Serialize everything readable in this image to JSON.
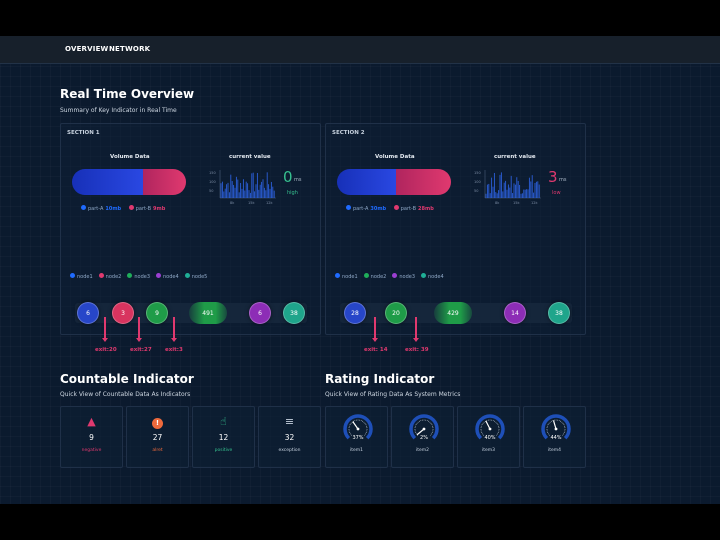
{
  "nav": {
    "items": [
      "OVERVIEW",
      "NETWORK"
    ]
  },
  "overview": {
    "title": "Real Time Overview",
    "subtitle": "Summary of Key Indicator in Real Time",
    "sections": [
      {
        "title": "SECTION 1",
        "volume_label": "Volume Data",
        "current_label": "current value",
        "volume": {
          "part_a": {
            "label": "part-A",
            "value": "10mb",
            "share": 0.62
          },
          "part_b": {
            "label": "part-B",
            "value": "9mb",
            "share": 0.38
          }
        },
        "current": {
          "value": "0",
          "unit": "ms",
          "status": "high",
          "status_color": "#36c08f"
        },
        "mini_chart": {
          "y_ticks": [
            "150",
            "100",
            "50"
          ],
          "x_ticks": [
            "8k",
            "15k",
            "12k"
          ]
        },
        "legend": [
          {
            "label": "node1",
            "color": "#1f6bff"
          },
          {
            "label": "node2",
            "color": "#e0396f"
          },
          {
            "label": "node3",
            "color": "#1fae5a"
          },
          {
            "label": "node4",
            "color": "#9b3fd1"
          },
          {
            "label": "node5",
            "color": "#1fae96"
          }
        ],
        "flow": [
          {
            "value": "6",
            "color": "#2746c9"
          },
          {
            "value": "3",
            "color": "#d8345f"
          },
          {
            "value": "9",
            "color": "#1f9c48"
          },
          {
            "value": "491",
            "color": "#1f9c48",
            "capsule": true
          },
          {
            "value": "6",
            "color": "#8d2db6"
          },
          {
            "value": "38",
            "color": "#1fa58b"
          }
        ],
        "exits": [
          "exit:20",
          "exit:27",
          "exit:3"
        ]
      },
      {
        "title": "SECTION 2",
        "volume_label": "Volume Data",
        "current_label": "current value",
        "volume": {
          "part_a": {
            "label": "part-A",
            "value": "30mb",
            "share": 0.52
          },
          "part_b": {
            "label": "part-B",
            "value": "28mb",
            "share": 0.48
          }
        },
        "current": {
          "value": "3",
          "unit": "ms",
          "status": "low",
          "status_color": "#e0396f"
        },
        "mini_chart": {
          "y_ticks": [
            "150",
            "100",
            "50"
          ],
          "x_ticks": [
            "8k",
            "15k",
            "12k"
          ]
        },
        "legend": [
          {
            "label": "node1",
            "color": "#1f6bff"
          },
          {
            "label": "node2",
            "color": "#1fae5a"
          },
          {
            "label": "node3",
            "color": "#9b3fd1"
          },
          {
            "label": "node4",
            "color": "#1fae96"
          }
        ],
        "flow": [
          {
            "value": "28",
            "color": "#2746c9"
          },
          {
            "value": "20",
            "color": "#1f9c48"
          },
          {
            "value": "429",
            "color": "#1f9c48",
            "capsule": true
          },
          {
            "value": "14",
            "color": "#8d2db6"
          },
          {
            "value": "38",
            "color": "#1fa58b"
          }
        ],
        "exits": [
          "exit: 14",
          "exit: 39"
        ]
      }
    ]
  },
  "countable": {
    "title": "Countable Indicator",
    "subtitle": "Quick View of Countable Data As Indicators",
    "cards": [
      {
        "icon": "siren-icon",
        "value": "9",
        "label": "negative",
        "color": "#e0396f"
      },
      {
        "icon": "alert-icon",
        "value": "27",
        "label": "alret",
        "color": "#ef6a3c"
      },
      {
        "icon": "thumbs-up-icon",
        "value": "12",
        "label": "positive",
        "color": "#36c08f"
      },
      {
        "icon": "exception-icon",
        "value": "32",
        "label": "exception",
        "color": "#c7d2df"
      }
    ]
  },
  "rating": {
    "title": "Rating Indicator",
    "subtitle": "Quick View of Rating Data As System Metrics",
    "items": [
      {
        "label": "item1",
        "percent": 37
      },
      {
        "label": "item2",
        "percent": 2
      },
      {
        "label": "item3",
        "percent": 40
      },
      {
        "label": "item4",
        "percent": 44
      }
    ]
  }
}
